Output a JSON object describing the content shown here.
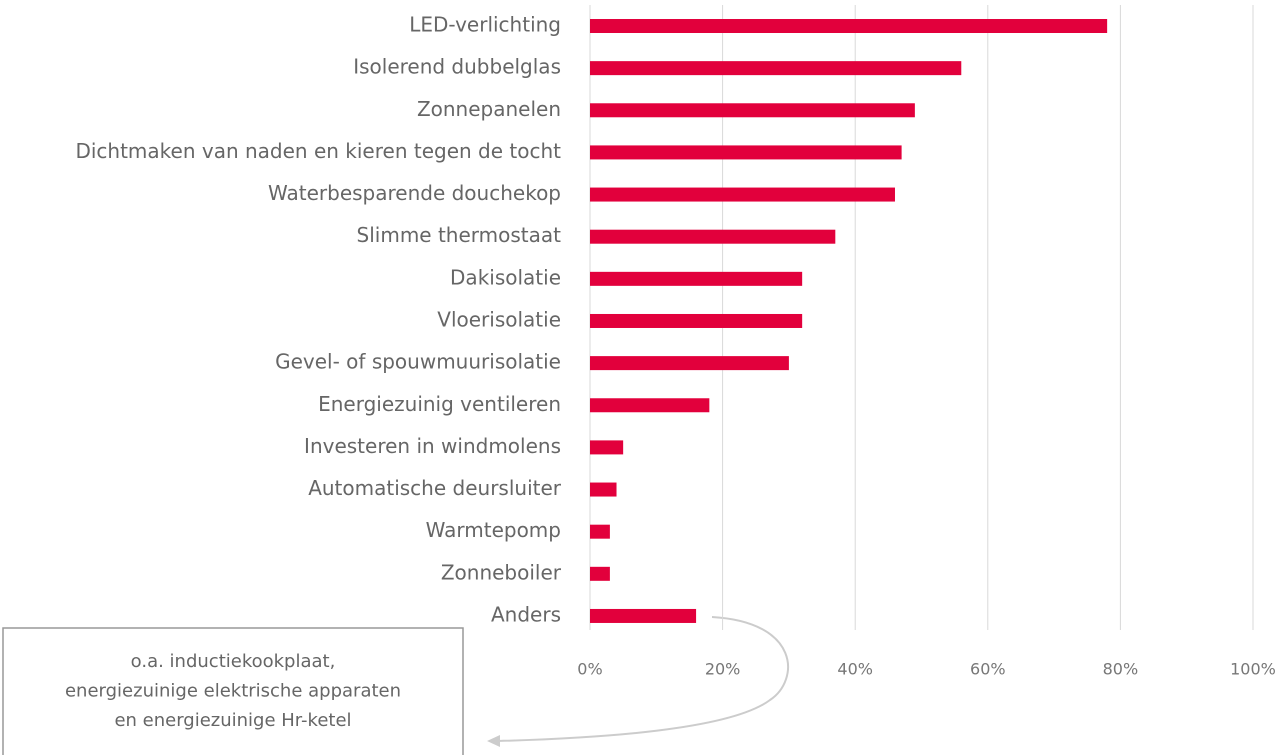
{
  "chart_data": {
    "type": "barh",
    "categories": [
      "LED-verlichting",
      "Isolerend dubbelglas",
      "Zonnepanelen",
      "Dichtmaken van naden en kieren tegen de tocht",
      "Waterbesparende douchekop",
      "Slimme thermostaat",
      "Dakisolatie",
      "Vloerisolatie",
      "Gevel- of spouwmuurisolatie",
      "Energiezuinig ventileren",
      "Investeren in windmolens",
      "Automatische deursluiter",
      "Warmtepomp",
      "Zonneboiler",
      "Anders"
    ],
    "values": [
      78,
      56,
      49,
      47,
      46,
      37,
      32,
      32,
      30,
      18,
      5,
      4,
      3,
      3,
      16
    ],
    "color": "#e2003c",
    "xlim": [
      0,
      100
    ],
    "xticks": [
      {
        "value": 0,
        "label": "0%"
      },
      {
        "value": 20,
        "label": "20%"
      },
      {
        "value": 40,
        "label": "40%"
      },
      {
        "value": 60,
        "label": "60%"
      },
      {
        "value": 80,
        "label": "80%"
      },
      {
        "value": 100,
        "label": "100%"
      }
    ],
    "grid": true,
    "annotation": [
      "o.a. inductiekookplaat,",
      "energiezuinige elektrische apparaten",
      "en energiezuinige Hr-ketel"
    ]
  }
}
